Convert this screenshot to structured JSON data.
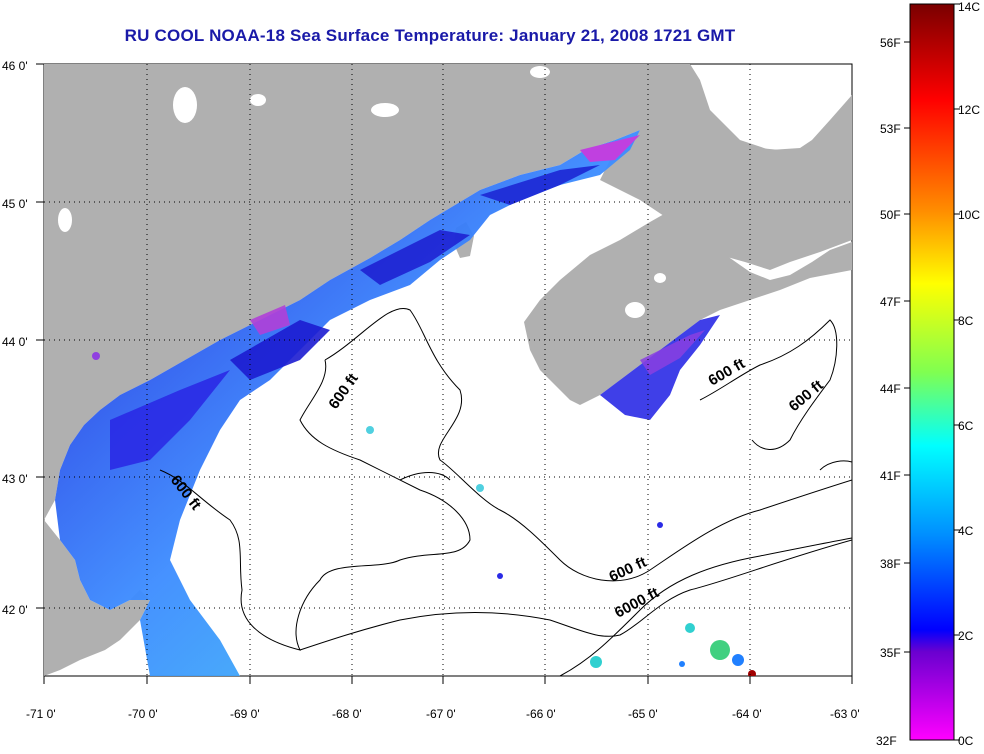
{
  "title": "RU COOL  NOAA-18  Sea Surface Temperature:  January 21, 2008 1721 GMT",
  "axes": {
    "lon_ticks": [
      "-71 0'",
      "-70 0'",
      "-69 0'",
      "-68 0'",
      "-67 0'",
      "-66 0'",
      "-65 0'",
      "-64 0'",
      "-63 0'"
    ],
    "lat_ticks": [
      "46 0'",
      "45 0'",
      "44 0'",
      "43 0'",
      "42 0'"
    ],
    "lon_range": [
      -71,
      -63
    ],
    "lat_range": [
      41.5,
      46
    ]
  },
  "contour_labels": {
    "c1": "600 ft",
    "c2": "600 ft",
    "c3": "600 ft",
    "c4": "600 ft",
    "c5": "600 ft",
    "c6": "6000 ft"
  },
  "colorbar": {
    "fahrenheit": [
      "56F",
      "53F",
      "50F",
      "47F",
      "44F",
      "41F",
      "38F",
      "35F",
      "32F"
    ],
    "celsius": [
      "14C",
      "12C",
      "10C",
      "8C",
      "6C",
      "4C",
      "2C",
      "0C"
    ],
    "gradient_stops": [
      "#8b0000",
      "#ff0000",
      "#ff8000",
      "#ffff00",
      "#80ff40",
      "#00ffff",
      "#0080ff",
      "#0000ff",
      "#8000c0",
      "#ff00ff"
    ]
  },
  "colors": {
    "land": "#b0b0b0",
    "title": "#1a1aa8",
    "cold_water": "#2a2ae6",
    "mid_water": "#3c8cff",
    "cool_water": "#3fd0e8"
  }
}
